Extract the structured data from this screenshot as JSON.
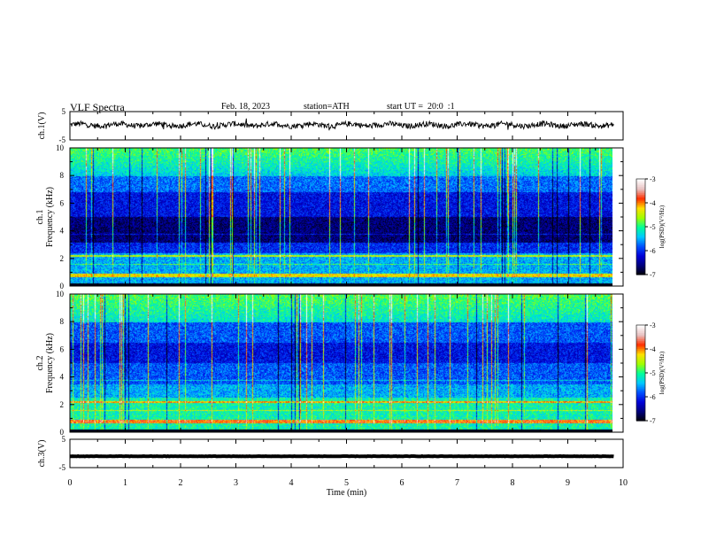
{
  "header": {
    "title": "VLF Spectra",
    "date": "Feb. 18, 2023",
    "station": "station=ATH",
    "start_ut": "start UT =  20:0  :1"
  },
  "chart_data": [
    {
      "type": "line",
      "panel": "ch1-waveform",
      "ylabel": "ch.1(V)",
      "ylim": [
        -5,
        5
      ],
      "yticks": [
        "5",
        "-5"
      ],
      "xlim": [
        0,
        10
      ],
      "data_end_min": 9.83,
      "description_values": {
        "baseline": 0.3,
        "amplitude": 1.2
      }
    },
    {
      "type": "heatmap",
      "panel": "ch1-spectrogram",
      "ylabel": "ch.1\nFrequency (kHz)",
      "ylim": [
        0,
        10
      ],
      "yticks": [
        "0",
        "2",
        "4",
        "6",
        "8",
        "10"
      ],
      "xlim": [
        0,
        10
      ],
      "data_end_min": 9.83,
      "colorbar": {
        "label": "log(PSD)(V²/Hz)",
        "range": [
          -7,
          -3
        ],
        "ticks": [
          "-3",
          "-4",
          "-5",
          "-6",
          "-7"
        ]
      }
    },
    {
      "type": "heatmap",
      "panel": "ch2-spectrogram",
      "ylabel": "ch.2\nFrequency (kHz)",
      "ylim": [
        0,
        10
      ],
      "yticks": [
        "0",
        "2",
        "4",
        "6",
        "8",
        "10"
      ],
      "xlim": [
        0,
        10
      ],
      "data_end_min": 9.83,
      "colorbar": {
        "label": "log(PSD)(V²/Hz)",
        "range": [
          -7,
          -3
        ],
        "ticks": [
          "-3",
          "-4",
          "-5",
          "-6",
          "-7"
        ]
      }
    },
    {
      "type": "line",
      "panel": "ch3-waveform",
      "ylabel": "ch.3(V)",
      "ylim": [
        -5,
        5
      ],
      "yticks": [
        "5",
        "-5"
      ],
      "xlim": [
        0,
        10
      ],
      "data_end_min": 9.83,
      "description_values": {
        "baseline": -1.0,
        "amplitude": 0.15
      }
    }
  ],
  "xaxis": {
    "label": "Time (min)",
    "ticks": [
      "0",
      "1",
      "2",
      "3",
      "4",
      "5",
      "6",
      "7",
      "8",
      "9",
      "10"
    ]
  },
  "colors": {
    "trace": "#000000",
    "colormap": [
      "#000000",
      "#00007a",
      "#0000d8",
      "#0050ff",
      "#00c8ff",
      "#00ff9a",
      "#a0ff00",
      "#ffe000",
      "#ff3000",
      "#e8c0c0",
      "#ffffff"
    ]
  }
}
